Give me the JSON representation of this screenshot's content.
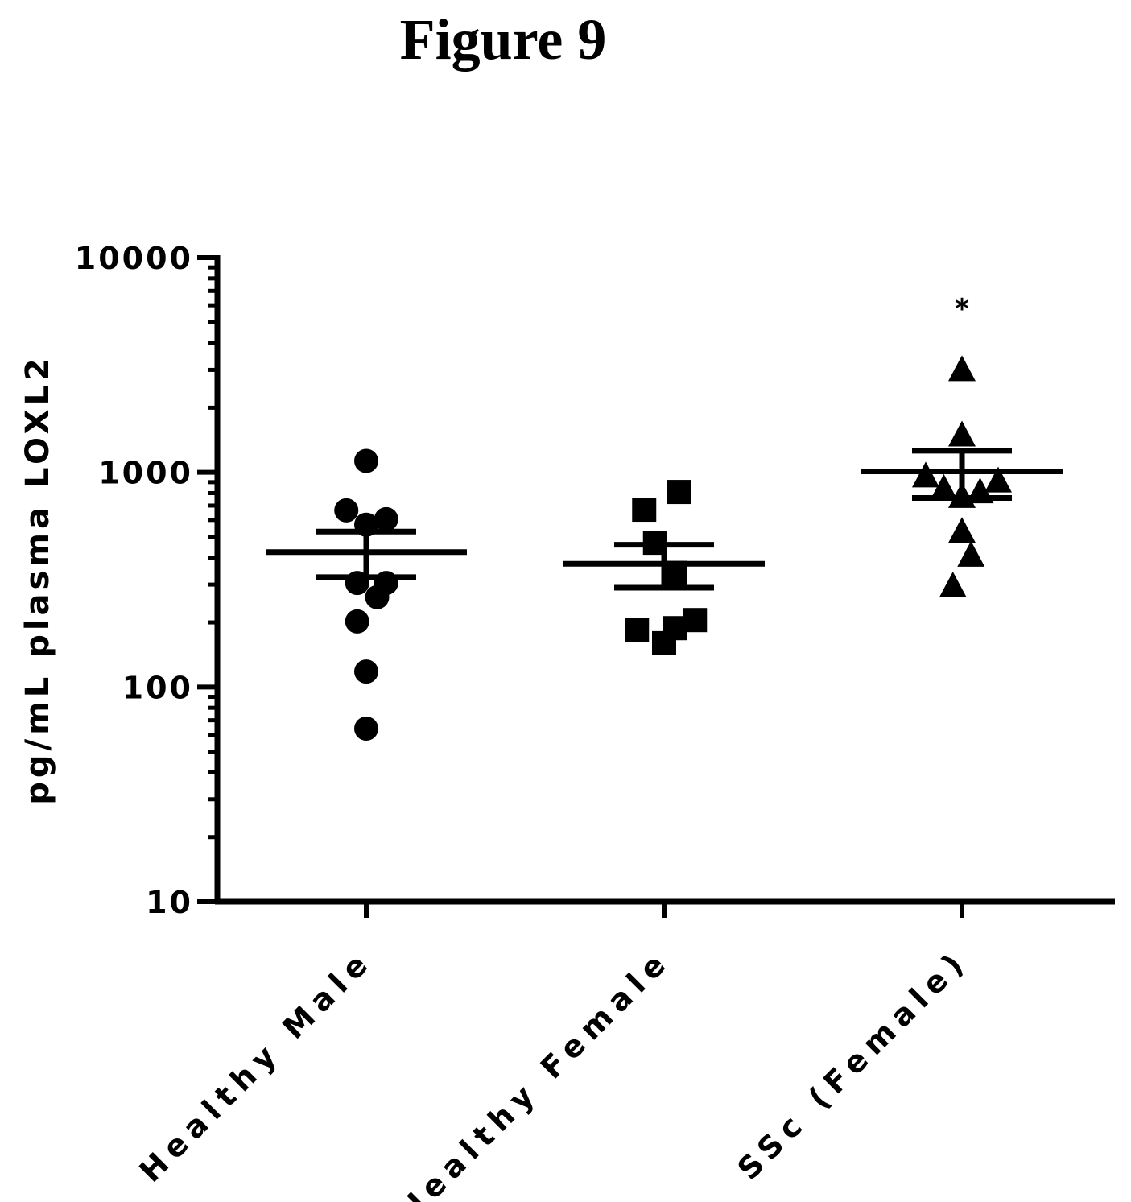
{
  "figure_title": "Figure 9",
  "chart_data": {
    "type": "scatter",
    "title": "Figure 9",
    "xlabel": "",
    "ylabel": "pg/mL plasma LOXL2",
    "yscale": "log",
    "ylim": [
      10,
      10000
    ],
    "yticks": [
      10,
      100,
      1000,
      10000
    ],
    "ytick_labels": [
      "10",
      "100",
      "1000",
      "10000"
    ],
    "categories": [
      "Healthy Male",
      "Healthy Female",
      "SSc (Female)"
    ],
    "series": [
      {
        "category": "Healthy Male",
        "marker": "circle",
        "points": [
          {
            "offset": 0,
            "y": 1130
          },
          {
            "offset": -0.55,
            "y": 665
          },
          {
            "offset": 0,
            "y": 570
          },
          {
            "offset": 0.55,
            "y": 605
          },
          {
            "offset": -0.25,
            "y": 305
          },
          {
            "offset": 0.55,
            "y": 305
          },
          {
            "offset": 0.3,
            "y": 262
          },
          {
            "offset": -0.25,
            "y": 202
          },
          {
            "offset": 0,
            "y": 118
          },
          {
            "offset": 0,
            "y": 64
          }
        ],
        "mean": 425,
        "sem_upper": 530,
        "sem_lower": 325
      },
      {
        "category": "Healthy Female",
        "marker": "square",
        "points": [
          {
            "offset": 0.4,
            "y": 810
          },
          {
            "offset": -0.55,
            "y": 670
          },
          {
            "offset": -0.25,
            "y": 470
          },
          {
            "offset": 0.3,
            "y": 340
          },
          {
            "offset": -0.75,
            "y": 185
          },
          {
            "offset": 0.3,
            "y": 188
          },
          {
            "offset": 0.85,
            "y": 205
          },
          {
            "offset": 0,
            "y": 160
          }
        ],
        "mean": 375,
        "sem_upper": 460,
        "sem_lower": 290
      },
      {
        "category": "SSc (Female)",
        "marker": "triangle",
        "points": [
          {
            "offset": 0,
            "y": 3000
          },
          {
            "offset": 0,
            "y": 1490
          },
          {
            "offset": -1.0,
            "y": 960
          },
          {
            "offset": -0.5,
            "y": 840
          },
          {
            "offset": 0,
            "y": 770
          },
          {
            "offset": 0.5,
            "y": 810
          },
          {
            "offset": 1.0,
            "y": 910
          },
          {
            "offset": 0,
            "y": 530
          },
          {
            "offset": 0.25,
            "y": 410
          },
          {
            "offset": -0.25,
            "y": 295
          }
        ],
        "mean": 1010,
        "sem_upper": 1260,
        "sem_lower": 760
      }
    ],
    "annotations": [
      {
        "category": "SSc (Female)",
        "text": "*"
      }
    ]
  }
}
